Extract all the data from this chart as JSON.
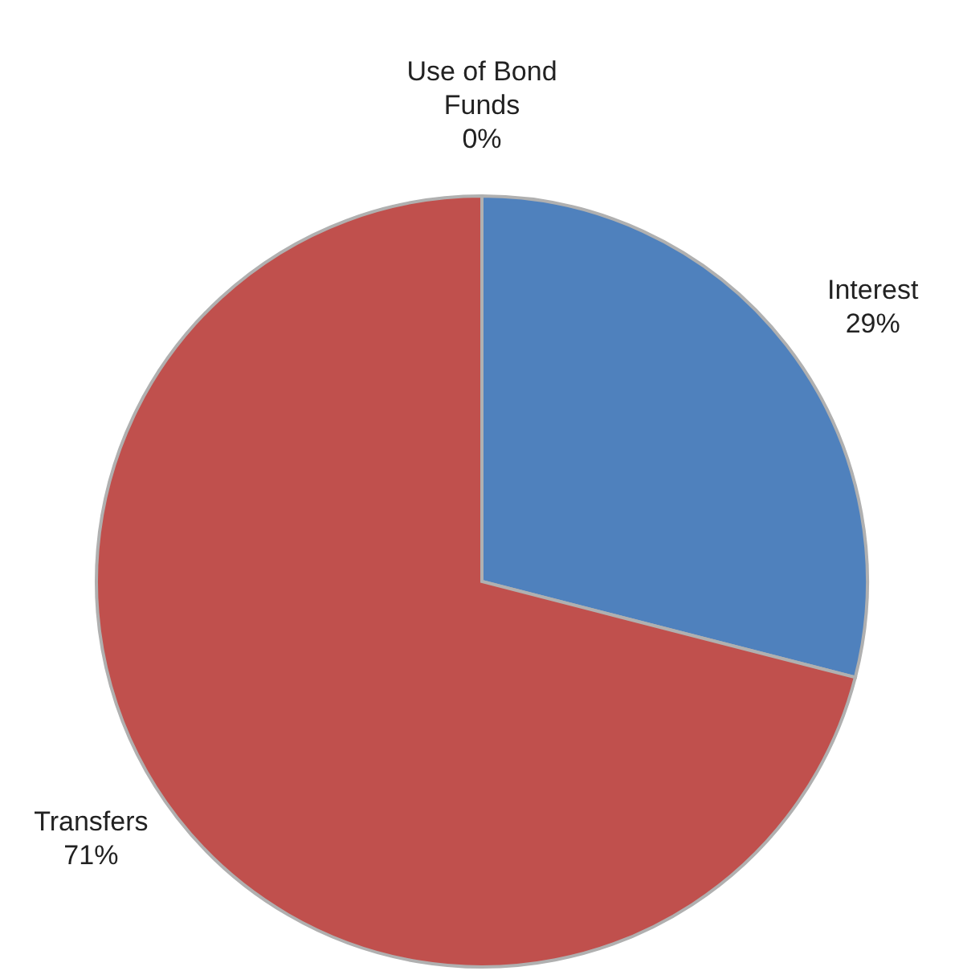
{
  "chart_data": {
    "type": "pie",
    "categories": [
      "Use of Bond Funds",
      "Interest",
      "Transfers"
    ],
    "values": [
      0,
      29,
      71
    ],
    "colors": [
      "#9bbb59",
      "#4f81bd",
      "#c0504d"
    ],
    "value_labels": [
      "0%",
      "29%",
      "71%"
    ]
  }
}
